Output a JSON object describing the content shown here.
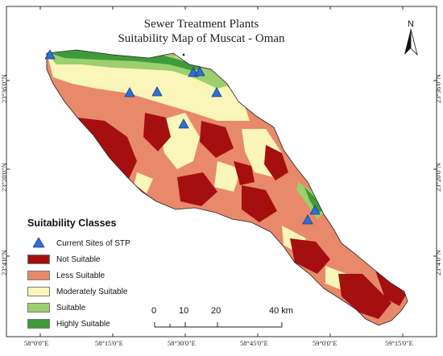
{
  "title": {
    "line1": "Sewer Treatment Plants",
    "line2": "Suitability Map of Muscat - Oman"
  },
  "north_arrow": {
    "label": "N"
  },
  "axes": {
    "longitude_ticks": [
      "58°0'0\"E",
      "58°15'0\"E",
      "58°30'0\"E",
      "58°45'0\"E",
      "59°0'0\"E",
      "59°15'0\"E"
    ],
    "latitude_ticks": [
      "23°36'0\"N",
      "23°20'0\"N",
      "23°4'0\"N"
    ]
  },
  "legend": {
    "title": "Suitability Classes",
    "sites_label": "Current Sites of STP",
    "classes": [
      {
        "label": "Not Suitable",
        "color": "#a50f0f"
      },
      {
        "label": "Less Suitable",
        "color": "#e8896a"
      },
      {
        "label": "Moderately Suitable",
        "color": "#faf5b8"
      },
      {
        "label": "Suitable",
        "color": "#9ccf6e"
      },
      {
        "label": "Highly Suitable",
        "color": "#3f9a3a"
      }
    ],
    "site_color": "#2f6fd6"
  },
  "scale_bar": {
    "labels": [
      "0",
      "10",
      "20",
      "40 km"
    ]
  }
}
